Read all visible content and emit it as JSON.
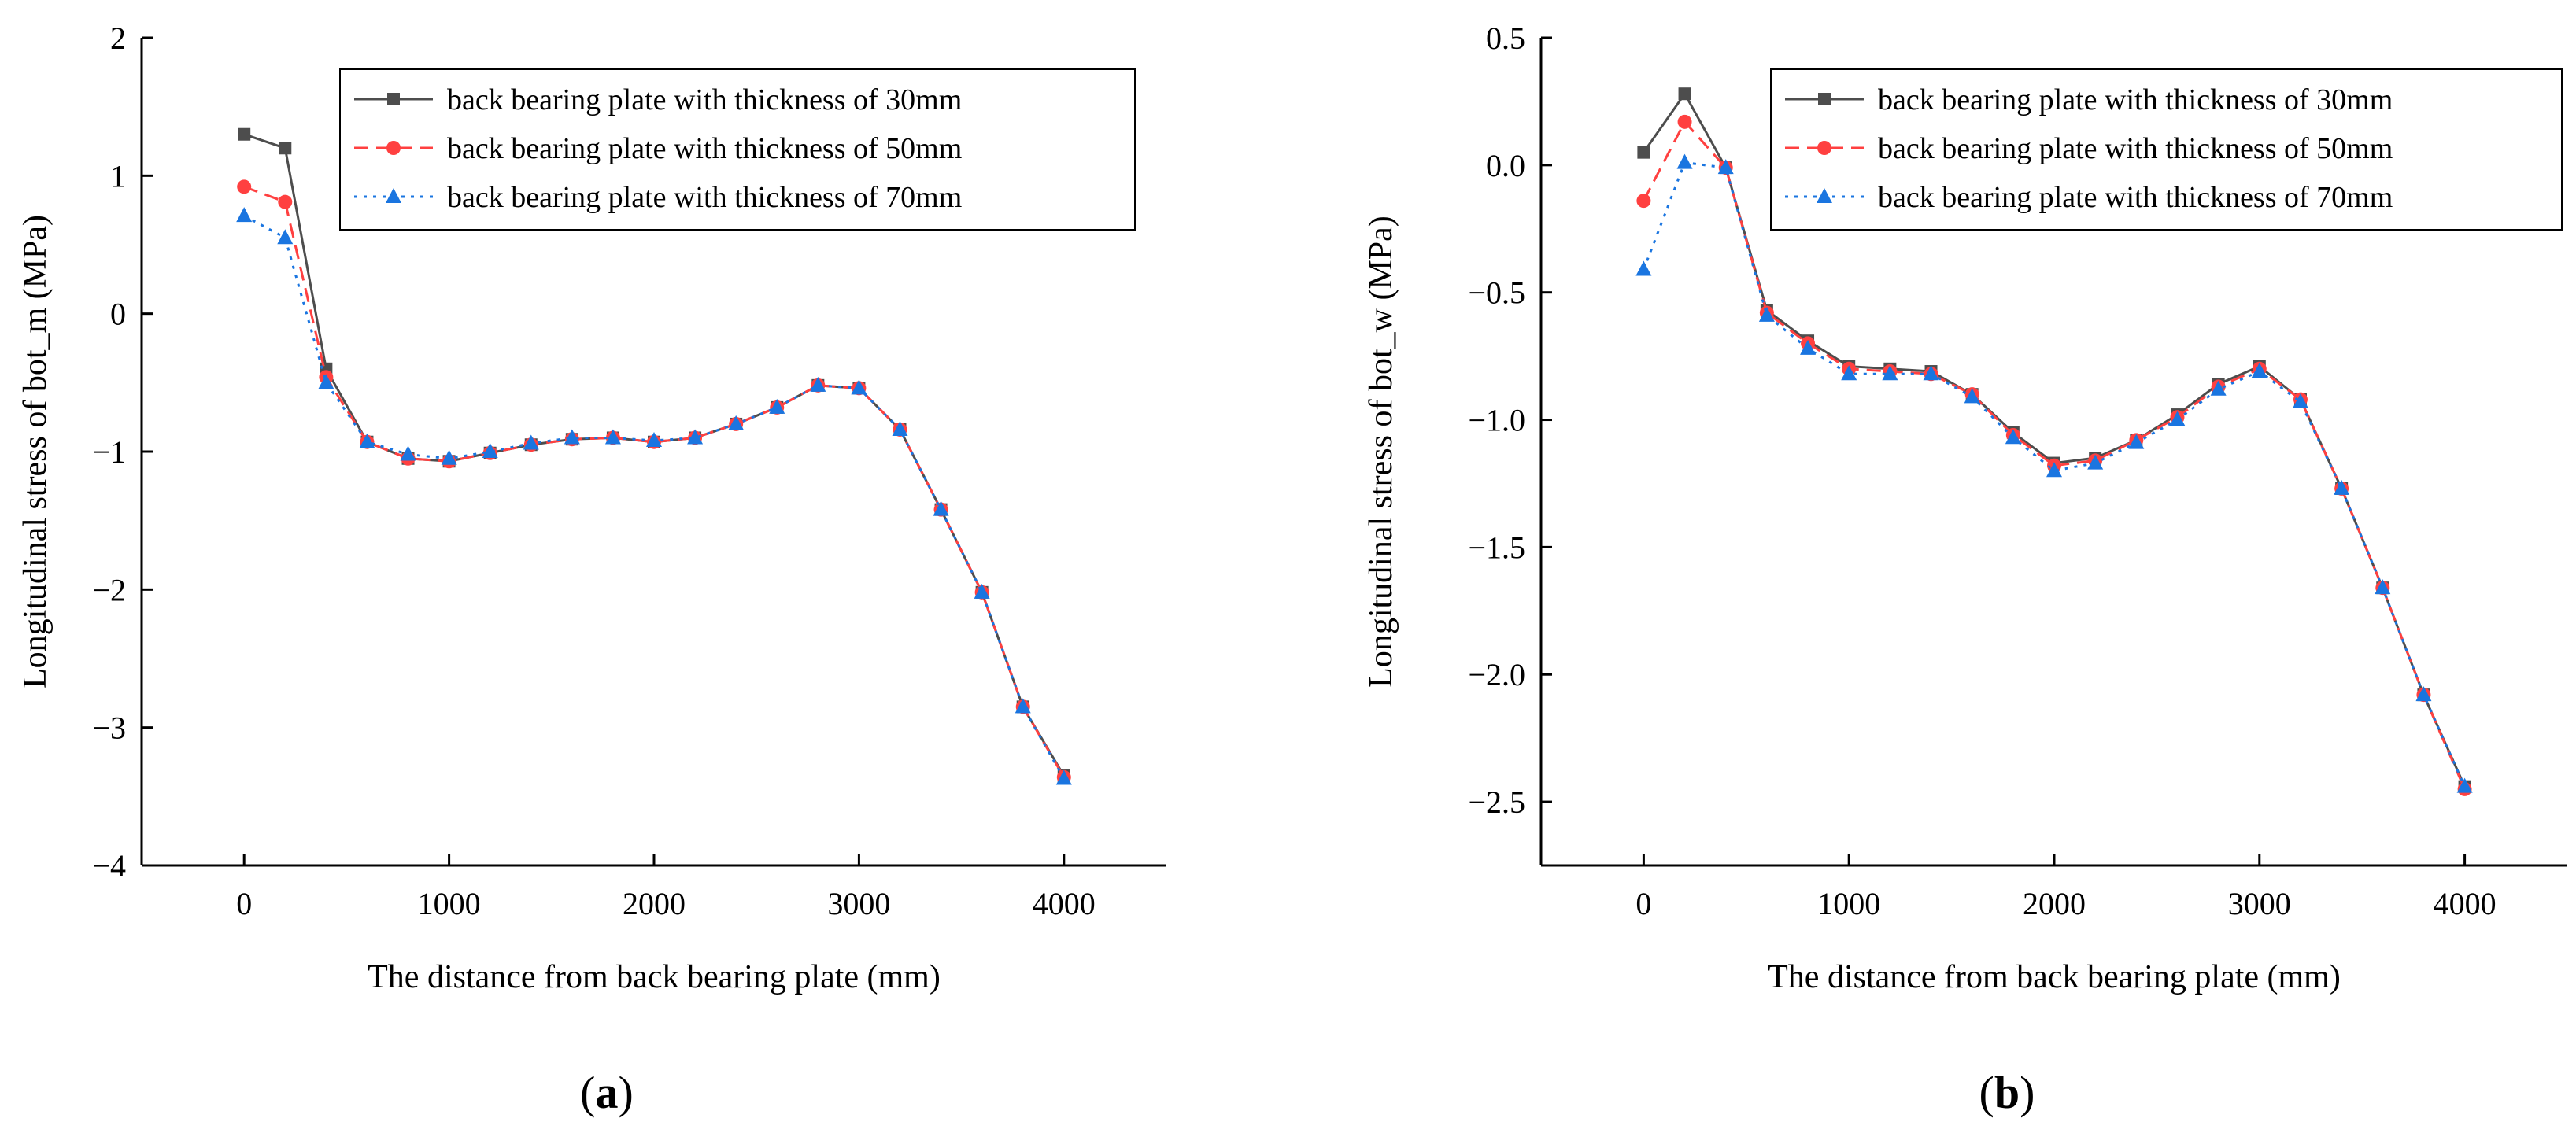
{
  "chart_data": [
    {
      "type": "line",
      "panel_label": "(a)",
      "xlabel": "The distance from back bearing plate (mm)",
      "ylabel": "Longitudinal stress of bot_m (MPa)",
      "xlim": [
        -500,
        4500
      ],
      "ylim": [
        -4,
        2
      ],
      "xticks": [
        0,
        1000,
        2000,
        3000,
        4000
      ],
      "yticks": [
        -4,
        -3,
        -2,
        -1,
        0,
        1,
        2
      ],
      "grid": false,
      "legend_position": "top-right",
      "x": [
        0,
        200,
        400,
        600,
        800,
        1000,
        1200,
        1400,
        1600,
        1800,
        2000,
        2200,
        2400,
        2600,
        2800,
        3000,
        3200,
        3400,
        3600,
        3800,
        4000
      ],
      "series": [
        {
          "name": "back bearing plate with thickness of 30mm",
          "color": "#4d4d4d",
          "dash": "solid",
          "marker": "square",
          "values": [
            1.3,
            1.2,
            -0.4,
            -0.93,
            -1.05,
            -1.07,
            -1.01,
            -0.95,
            -0.91,
            -0.9,
            -0.93,
            -0.9,
            -0.8,
            -0.68,
            -0.52,
            -0.54,
            -0.84,
            -1.42,
            -2.02,
            -2.85,
            -3.35
          ]
        },
        {
          "name": "back bearing plate with thickness of 50mm",
          "color": "#ff4040",
          "dash": "dashed",
          "marker": "circle",
          "values": [
            0.92,
            0.81,
            -0.46,
            -0.93,
            -1.05,
            -1.07,
            -1.01,
            -0.95,
            -0.91,
            -0.9,
            -0.93,
            -0.9,
            -0.8,
            -0.68,
            -0.52,
            -0.54,
            -0.84,
            -1.42,
            -2.02,
            -2.85,
            -3.36
          ]
        },
        {
          "name": "back bearing plate with thickness of 70mm",
          "color": "#1a75e0",
          "dash": "dotted",
          "marker": "triangle",
          "values": [
            0.71,
            0.55,
            -0.5,
            -0.93,
            -1.02,
            -1.05,
            -1.0,
            -0.94,
            -0.9,
            -0.9,
            -0.92,
            -0.9,
            -0.8,
            -0.68,
            -0.52,
            -0.54,
            -0.84,
            -1.42,
            -2.02,
            -2.85,
            -3.37
          ]
        }
      ]
    },
    {
      "type": "line",
      "panel_label": "(b)",
      "xlabel": "The distance from back bearing plate (mm)",
      "ylabel": "Longitudinal stress of bot_w (MPa)",
      "xlim": [
        -500,
        4500
      ],
      "ylim": [
        -2.75,
        0.5
      ],
      "xticks": [
        0,
        1000,
        2000,
        3000,
        4000
      ],
      "yticks": [
        -2.5,
        -2.0,
        -1.5,
        -1.0,
        -0.5,
        0.0,
        0.5
      ],
      "ytick_labels": [
        "-2.5",
        "-2.0",
        "-1.5",
        "-1.0",
        "-0.5",
        "0.0",
        "0.5"
      ],
      "grid": false,
      "legend_position": "top-right",
      "x": [
        0,
        200,
        400,
        600,
        800,
        1000,
        1200,
        1400,
        1600,
        1800,
        2000,
        2200,
        2400,
        2600,
        2800,
        3000,
        3200,
        3400,
        3600,
        3800,
        4000
      ],
      "series": [
        {
          "name": "back bearing plate with thickness of 30mm",
          "color": "#4d4d4d",
          "dash": "solid",
          "marker": "square",
          "values": [
            0.05,
            0.28,
            -0.01,
            -0.57,
            -0.69,
            -0.79,
            -0.8,
            -0.81,
            -0.9,
            -1.05,
            -1.17,
            -1.15,
            -1.08,
            -0.98,
            -0.86,
            -0.79,
            -0.92,
            -1.27,
            -1.66,
            -2.08,
            -2.44
          ]
        },
        {
          "name": "back bearing plate with thickness of 50mm",
          "color": "#ff4040",
          "dash": "dashed",
          "marker": "circle",
          "values": [
            -0.14,
            0.17,
            -0.01,
            -0.58,
            -0.7,
            -0.8,
            -0.81,
            -0.82,
            -0.9,
            -1.06,
            -1.18,
            -1.16,
            -1.08,
            -0.99,
            -0.87,
            -0.8,
            -0.92,
            -1.27,
            -1.66,
            -2.08,
            -2.45
          ]
        },
        {
          "name": "back bearing plate with thickness of 70mm",
          "color": "#1a75e0",
          "dash": "dotted",
          "marker": "triangle",
          "values": [
            -0.41,
            0.01,
            -0.01,
            -0.59,
            -0.72,
            -0.82,
            -0.82,
            -0.82,
            -0.91,
            -1.07,
            -1.2,
            -1.17,
            -1.09,
            -1.0,
            -0.88,
            -0.81,
            -0.93,
            -1.27,
            -1.66,
            -2.08,
            -2.44
          ]
        }
      ]
    }
  ]
}
